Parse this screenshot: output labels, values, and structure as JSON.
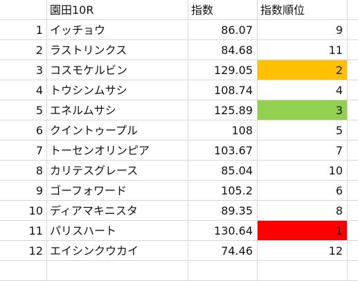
{
  "sheet": {
    "headers": {
      "name": "園田10R",
      "index": "指数",
      "rank": "指数順位"
    },
    "rows": [
      {
        "num": "1",
        "name": "イッチョウ",
        "index": "86.07",
        "rank": "9",
        "fill": ""
      },
      {
        "num": "2",
        "name": "ラストリンクス",
        "index": "84.68",
        "rank": "11",
        "fill": ""
      },
      {
        "num": "3",
        "name": "コスモケルビン",
        "index": "129.05",
        "rank": "2",
        "fill": "#FFC000"
      },
      {
        "num": "4",
        "name": "トウシンムサシ",
        "index": "108.74",
        "rank": "4",
        "fill": ""
      },
      {
        "num": "5",
        "name": "エネルムサシ",
        "index": "125.89",
        "rank": "3",
        "fill": "#92D050"
      },
      {
        "num": "6",
        "name": "クイントゥープル",
        "index": "108",
        "rank": "5",
        "fill": ""
      },
      {
        "num": "7",
        "name": "トーセンオリンピア",
        "index": "103.67",
        "rank": "7",
        "fill": ""
      },
      {
        "num": "8",
        "name": "カリテスグレース",
        "index": "85.04",
        "rank": "10",
        "fill": ""
      },
      {
        "num": "9",
        "name": "ゴーフォワード",
        "index": "105.2",
        "rank": "6",
        "fill": ""
      },
      {
        "num": "10",
        "name": "ディアマキニスタ",
        "index": "89.35",
        "rank": "8",
        "fill": ""
      },
      {
        "num": "11",
        "name": "パリスハート",
        "index": "130.64",
        "rank": "1",
        "fill": "#FF0000"
      },
      {
        "num": "12",
        "name": "エイシンクウカイ",
        "index": "74.46",
        "rank": "12",
        "fill": ""
      }
    ]
  }
}
